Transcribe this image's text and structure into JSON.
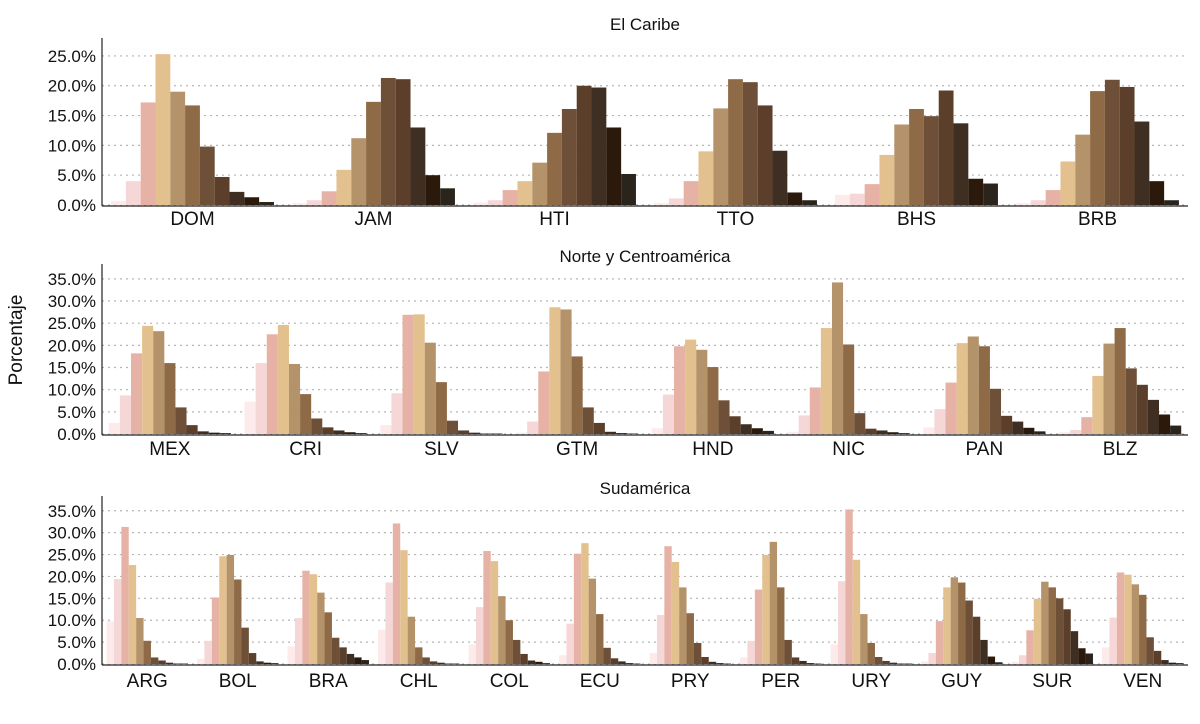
{
  "chart_data": {
    "type": "bar",
    "ylabel": "Porcentaje",
    "colors": [
      "#fdeaea",
      "#f6d7d7",
      "#e7b2a6",
      "#e3c18f",
      "#b5936a",
      "#8e6a46",
      "#6e5039",
      "#5b3f2b",
      "#3f2f22",
      "#2b1a0b",
      "#2a241c"
    ],
    "panels": [
      {
        "title": "El Caribe",
        "ylim": [
          0,
          27
        ],
        "yticks": [
          0,
          5,
          10,
          15,
          20,
          25
        ],
        "tick_labels": [
          "0.0%",
          "5.0%",
          "10.0%",
          "15.0%",
          "20.0%",
          "25.0%"
        ],
        "categories": [
          "DOM",
          "JAM",
          "HTI",
          "TTO",
          "BHS",
          "BRB"
        ],
        "series_values": [
          [
            0.7,
            4.0,
            17.2,
            25.3,
            19.0,
            16.7,
            9.8,
            4.7,
            2.2,
            1.3,
            0.5
          ],
          [
            0.3,
            0.8,
            2.3,
            5.9,
            11.2,
            17.3,
            21.3,
            21.1,
            13.0,
            5.0,
            2.8
          ],
          [
            0.4,
            0.8,
            2.5,
            4.0,
            7.1,
            12.1,
            16.1,
            20.0,
            19.7,
            13.0,
            5.2
          ],
          [
            0.3,
            1.1,
            4.0,
            9.0,
            16.2,
            21.1,
            20.6,
            16.7,
            9.1,
            2.1,
            0.8
          ],
          [
            1.7,
            1.9,
            3.5,
            8.4,
            13.5,
            16.1,
            14.9,
            19.2,
            13.7,
            4.4,
            3.6
          ],
          [
            0.3,
            0.8,
            2.5,
            7.3,
            11.8,
            19.1,
            21.0,
            19.8,
            14.0,
            4.0,
            0.8
          ]
        ]
      },
      {
        "title": "Norte y Centroamérica",
        "ylim": [
          0,
          37
        ],
        "yticks": [
          0,
          5,
          10,
          15,
          20,
          25,
          30,
          35
        ],
        "tick_labels": [
          "0.0%",
          "5.0%",
          "10.0%",
          "15.0%",
          "20.0%",
          "25.0%",
          "30.0%",
          "35.0%"
        ],
        "categories": [
          "MEX",
          "CRI",
          "SLV",
          "GTM",
          "HND",
          "NIC",
          "PAN",
          "BLZ"
        ],
        "series_values": [
          [
            2.5,
            8.7,
            18.2,
            24.4,
            23.2,
            16.0,
            6.0,
            2.0,
            0.6,
            0.3,
            0.2
          ],
          [
            7.3,
            16.0,
            22.5,
            24.6,
            15.8,
            9.0,
            3.5,
            1.5,
            0.8,
            0.4,
            0.2
          ],
          [
            2.0,
            9.2,
            26.9,
            27.0,
            20.6,
            11.7,
            3.0,
            0.8,
            0.3,
            0.1,
            0.1
          ],
          [
            0.3,
            2.8,
            14.1,
            28.6,
            28.1,
            17.5,
            6.0,
            2.5,
            0.5,
            0.2,
            0.1
          ],
          [
            1.3,
            8.9,
            19.8,
            21.3,
            19.0,
            15.1,
            7.6,
            4.0,
            2.2,
            1.3,
            0.7
          ],
          [
            0.5,
            4.2,
            10.5,
            23.9,
            34.2,
            20.2,
            4.7,
            1.2,
            0.8,
            0.4,
            0.2
          ],
          [
            1.5,
            5.6,
            11.6,
            20.5,
            22.0,
            19.8,
            10.2,
            4.1,
            2.8,
            1.4,
            0.6
          ],
          [
            0.4,
            0.9,
            3.8,
            13.1,
            20.4,
            23.9,
            14.8,
            11.1,
            7.7,
            4.4,
            1.9
          ]
        ]
      },
      {
        "title": "Sudamérica",
        "ylim": [
          0,
          37
        ],
        "yticks": [
          0,
          5,
          10,
          15,
          20,
          25,
          30,
          35
        ],
        "tick_labels": [
          "0.0%",
          "5.0%",
          "10.0%",
          "15.0%",
          "20.0%",
          "25.0%",
          "30.0%",
          "35.0%"
        ],
        "categories": [
          "ARG",
          "BOL",
          "BRA",
          "CHL",
          "COL",
          "ECU",
          "PRY",
          "PER",
          "URY",
          "GUY",
          "SUR",
          "VEN"
        ],
        "series_values": [
          [
            9.8,
            19.4,
            31.3,
            22.6,
            10.5,
            5.3,
            1.5,
            0.8,
            0.3,
            0.1,
            0.1
          ],
          [
            1.2,
            5.3,
            15.2,
            24.6,
            24.9,
            19.3,
            8.3,
            2.5,
            0.6,
            0.3,
            0.2
          ],
          [
            4.0,
            10.5,
            21.3,
            20.5,
            16.3,
            11.8,
            6.0,
            3.8,
            2.3,
            1.5,
            0.9
          ],
          [
            7.8,
            18.6,
            32.1,
            26.0,
            10.8,
            3.8,
            1.5,
            0.6,
            0.3,
            0.1,
            0.1
          ],
          [
            4.5,
            13.0,
            25.8,
            23.5,
            15.5,
            10.0,
            5.5,
            2.3,
            0.8,
            0.5,
            0.2
          ],
          [
            2.0,
            9.2,
            25.2,
            27.6,
            19.5,
            11.4,
            3.7,
            1.3,
            0.6,
            0.2,
            0.1
          ],
          [
            2.5,
            11.2,
            26.9,
            23.3,
            17.5,
            11.6,
            4.8,
            1.6,
            0.5,
            0.2,
            0.1
          ],
          [
            1.5,
            5.3,
            17.0,
            24.9,
            27.9,
            17.5,
            5.5,
            1.5,
            0.7,
            0.2,
            0.1
          ],
          [
            4.5,
            18.9,
            35.3,
            23.8,
            11.4,
            4.8,
            1.6,
            0.7,
            0.3,
            0.1,
            0.1
          ],
          [
            0.6,
            2.5,
            9.8,
            17.5,
            19.8,
            18.6,
            14.5,
            10.8,
            5.5,
            1.7,
            0.4
          ],
          [
            0.5,
            2.0,
            7.7,
            14.9,
            18.8,
            17.5,
            15.0,
            12.5,
            7.5,
            3.6,
            2.4
          ],
          [
            3.8,
            10.6,
            20.9,
            20.4,
            18.2,
            15.8,
            6.1,
            3.0,
            0.9,
            0.3,
            0.2
          ]
        ]
      }
    ]
  }
}
